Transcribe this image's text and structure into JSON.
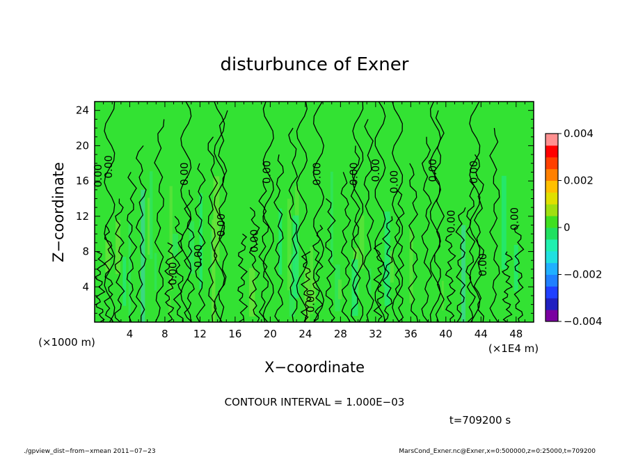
{
  "chart_data": {
    "type": "heatmap",
    "title": "disturbunce of Exner",
    "xlabel": "X−coordinate",
    "ylabel": "Z−coordinate",
    "x_unit_note": "(×1E4 m)",
    "y_unit_note": "(×1000 m)",
    "xlim": [
      0,
      50
    ],
    "ylim": [
      0,
      25
    ],
    "x_ticks": [
      4,
      8,
      12,
      16,
      20,
      24,
      28,
      32,
      36,
      40,
      44,
      48
    ],
    "y_ticks": [
      4,
      8,
      12,
      16,
      20,
      24
    ],
    "contour_interval_text": "CONTOUR INTERVAL = 1.000E−03",
    "time_text": "t=709200 s",
    "colorbar": {
      "vmin": -0.004,
      "vmax": 0.004,
      "tick_labels": [
        "0.004",
        "0.002",
        "0",
        "−0.002",
        "−0.004"
      ],
      "tick_values": [
        0.004,
        0.002,
        0,
        -0.002,
        -0.004
      ],
      "colors": [
        "#7a00a0",
        "#2020c0",
        "#2040ff",
        "#2080ff",
        "#20b0ff",
        "#20e0e0",
        "#20f0b0",
        "#20e060",
        "#40e020",
        "#a0e010",
        "#e0e000",
        "#ffc000",
        "#ff8000",
        "#ff4000",
        "#ff0000",
        "#ff9090"
      ]
    },
    "field_color": "#33e233",
    "contour_labels": [
      {
        "text": "0.00",
        "x": 0.8,
        "z": 16.6
      },
      {
        "text": "0.00",
        "x": 2.0,
        "z": 17.6
      },
      {
        "text": "0.00",
        "x": 10.6,
        "z": 16.8
      },
      {
        "text": "0.00",
        "x": 14.8,
        "z": 11.0
      },
      {
        "text": "0.00",
        "x": 12.2,
        "z": 7.5
      },
      {
        "text": "0.00",
        "x": 9.3,
        "z": 5.5
      },
      {
        "text": "0.00",
        "x": 18.6,
        "z": 9.2
      },
      {
        "text": "0.00",
        "x": 20.0,
        "z": 17.0
      },
      {
        "text": "0.00",
        "x": 25.7,
        "z": 16.8
      },
      {
        "text": "0.00",
        "x": 29.9,
        "z": 16.8
      },
      {
        "text": "0.00",
        "x": 32.4,
        "z": 17.2
      },
      {
        "text": "0.00",
        "x": 34.5,
        "z": 15.9
      },
      {
        "text": "0.00",
        "x": 38.9,
        "z": 17.2
      },
      {
        "text": "0.00",
        "x": 25.0,
        "z": 2.4
      },
      {
        "text": "0.00",
        "x": 41.0,
        "z": 11.4
      },
      {
        "text": "0.00",
        "x": 44.6,
        "z": 6.5
      },
      {
        "text": "0.00",
        "x": 43.6,
        "z": 17.0
      },
      {
        "text": "0.00",
        "x": 48.2,
        "z": 11.7
      }
    ]
  },
  "footer": {
    "left": "./gpview_dist−from−xmean  2011−07−23",
    "right": "MarsCond_Exner.nc@Exner,x=0:500000,z=0:25000,t=709200"
  }
}
